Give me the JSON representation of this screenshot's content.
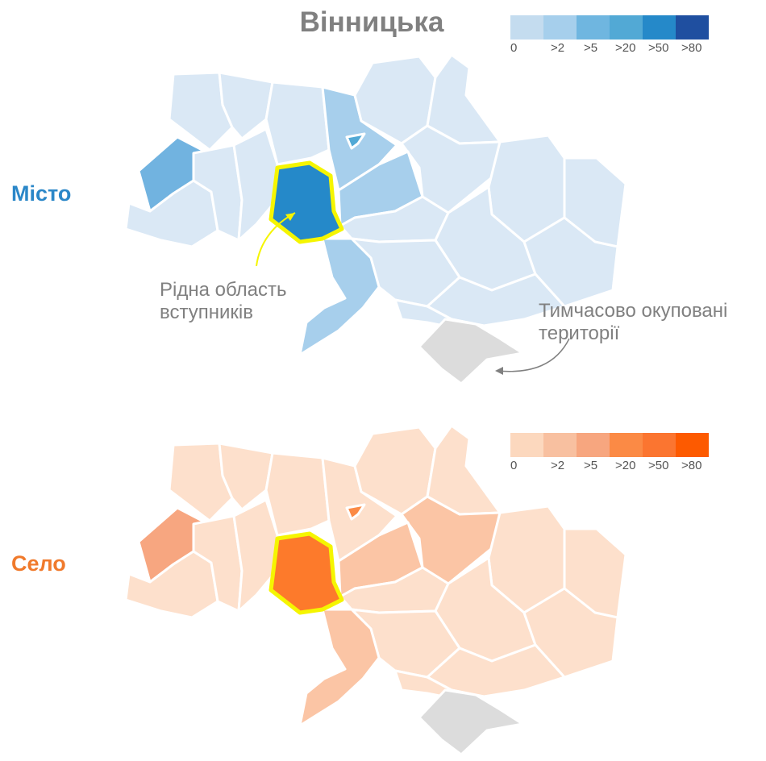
{
  "title": "Вінницька",
  "panels": {
    "city": {
      "label": "Місто",
      "label_color": "#2b87c8",
      "legend": {
        "colors": [
          "#c4dcef",
          "#a6cfec",
          "#6fb6e0",
          "#52a9d5",
          "#2589c9",
          "#1f4fa0"
        ],
        "labels": [
          "0",
          ">2",
          ">5",
          ">20",
          ">50",
          ">80"
        ]
      },
      "map_colors": {
        "default": "#dae8f5",
        "home": "#2589c9",
        "mid": "#a7cfec",
        "west": "#71b3e0",
        "kyiv_city": "#52a9d5",
        "occupied": "#dcdcdc",
        "highlight": "#f5f500"
      }
    },
    "village": {
      "label": "Село",
      "label_color": "#f07a2c",
      "legend": {
        "colors": [
          "#fcd8be",
          "#f8c0a0",
          "#f7a67f",
          "#fb8a45",
          "#fb7530",
          "#fd5a00"
        ],
        "labels": [
          "0",
          ">2",
          ">5",
          ">20",
          ">50",
          ">80"
        ]
      },
      "map_colors": {
        "default": "#fde0cc",
        "home": "#fd7a2b",
        "mid": "#fbc5a5",
        "west": "#f7a680",
        "kyiv_city": "#fb8a45",
        "occupied": "#dcdcdc",
        "highlight": "#f5f500"
      }
    }
  },
  "annotations": {
    "home_region": "Рідна область вступників",
    "home_region_lines": [
      "Рідна область",
      "вступників"
    ],
    "occupied": "Тимчасово окуповані території",
    "occupied_lines": [
      "Тимчасово окуповані",
      "території"
    ]
  }
}
